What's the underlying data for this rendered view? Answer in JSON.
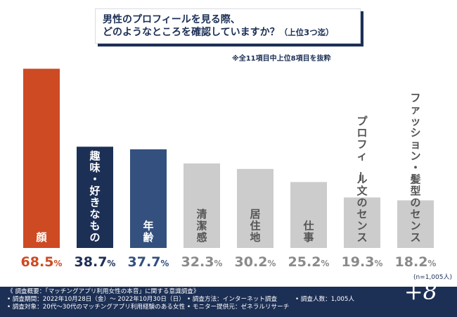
{
  "title": {
    "line1": "男性のプロフィールを見る際、",
    "line2": "どのようなところを確認していますか？",
    "suffix": "（上位3つ迄）"
  },
  "note": "※全11項目中上位8項目を抜粋",
  "chart_data": {
    "type": "bar",
    "title": "男性のプロフィールを見る際、どのようなところを確認していますか？（上位3つ迄）",
    "categories": [
      "顔",
      "趣味・好きなもの",
      "年齢",
      "清潔感",
      "居住地",
      "仕事",
      "プロフィール文のセンス",
      "ファッション・髪型のセンス"
    ],
    "values": [
      68.5,
      38.7,
      37.7,
      32.3,
      30.2,
      25.2,
      19.3,
      18.2
    ],
    "value_labels": [
      "68.5",
      "38.7",
      "37.7",
      "32.3",
      "30.2",
      "25.2",
      "19.3",
      "18.2"
    ],
    "unit": "%",
    "ylim": [
      0,
      70
    ],
    "n_label": "(n=1,005人)",
    "colors": [
      "#cd4a23",
      "#1c2f55",
      "#34507e",
      "#cccccc",
      "#cccccc",
      "#cccccc",
      "#cccccc",
      "#cccccc"
    ],
    "label_colors": [
      "#ffffff",
      "#ffffff",
      "#ffffff",
      "#555555",
      "#555555",
      "#555555",
      "#555555",
      "#555555"
    ],
    "value_colors": [
      "#cd4a23",
      "#1c2f55",
      "#34507e",
      "#8a8a8a",
      "#8a8a8a",
      "#8a8a8a",
      "#8a8a8a",
      "#8a8a8a"
    ]
  },
  "footer": {
    "heading": "《 調査概要：「マッチングアプリ利用女性の本音」に関する意識調査》",
    "period": "• 調査期間：2022年10月28日（金）～ 2022年10月30日（日）",
    "method": "• 調査方法：インターネット調査",
    "count": "• 調査人数：1,005人",
    "target": "• 調査対象：20代～30代のマッチングアプリ利用経験のある女性",
    "provider": "• モニター提供元：ゼネラルリサーチ",
    "logo": "+8"
  }
}
